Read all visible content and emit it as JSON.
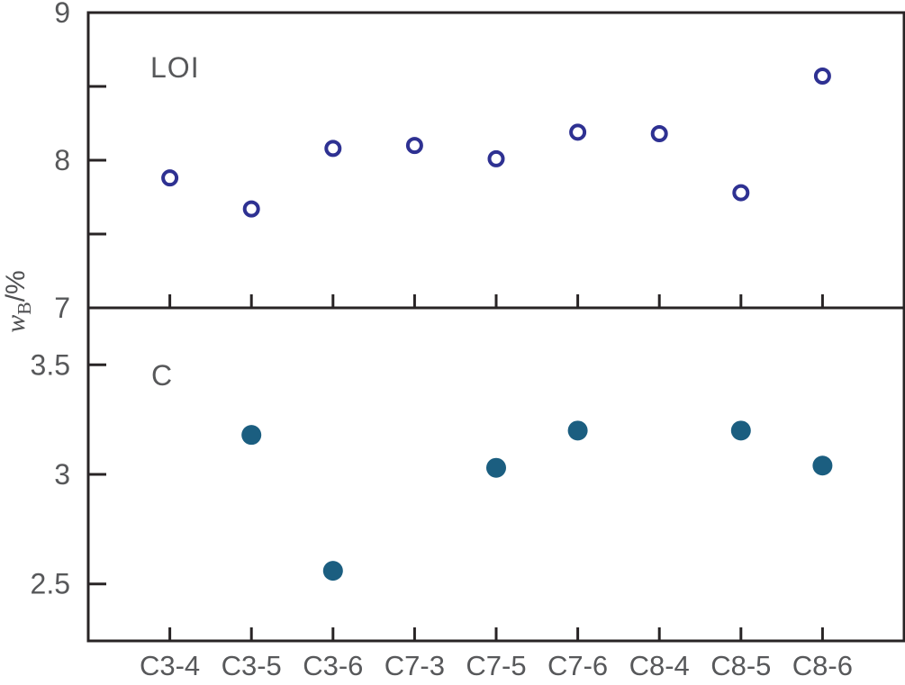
{
  "figure": {
    "y_axis_label": {
      "symbol": "w",
      "subscript": "B",
      "suffix": "/%"
    },
    "colors": {
      "axis": "#282425",
      "text": "#57585a",
      "open_marker": "#2e3192",
      "filled_marker": "#1b5e80",
      "background": "#ffffff"
    }
  },
  "chart_data": [
    {
      "type": "scatter",
      "panel": "top",
      "label": "LOI",
      "marker": "open-circle",
      "marker_color": "#2e3192",
      "categories": [
        "C3-4",
        "C3-5",
        "C3-6",
        "C7-3",
        "C7-5",
        "C7-6",
        "C8-4",
        "C8-5",
        "C8-6"
      ],
      "values": [
        7.88,
        7.67,
        8.08,
        8.1,
        8.01,
        8.19,
        8.18,
        7.78,
        8.57
      ],
      "ylim": [
        7,
        9
      ],
      "yticks": [
        {
          "value": 9,
          "label": "9"
        },
        {
          "value": 8.5,
          "label": ""
        },
        {
          "value": 8,
          "label": "8"
        },
        {
          "value": 7.5,
          "label": ""
        },
        {
          "value": 7,
          "label": "7"
        }
      ],
      "grid": false,
      "legend": "none"
    },
    {
      "type": "scatter",
      "panel": "bottom",
      "label": "C",
      "marker": "filled-circle",
      "marker_color": "#1b5e80",
      "categories": [
        "C3-4",
        "C3-5",
        "C3-6",
        "C7-3",
        "C7-5",
        "C7-6",
        "C8-4",
        "C8-5",
        "C8-6"
      ],
      "values": [
        null,
        3.18,
        2.56,
        null,
        3.03,
        3.2,
        null,
        3.2,
        3.04
      ],
      "ylim": [
        2.24,
        3.76
      ],
      "yticks": [
        {
          "value": 3.5,
          "label": "3.5"
        },
        {
          "value": 3,
          "label": "3"
        },
        {
          "value": 2.5,
          "label": "2.5"
        }
      ],
      "grid": false,
      "legend": "none"
    }
  ]
}
